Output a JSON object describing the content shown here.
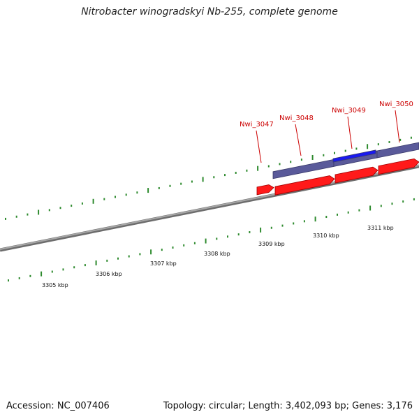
{
  "title": "Nitrobacter winogradskyi Nb-255, complete genome",
  "footer": {
    "accession": "Accession: NC_007406",
    "summary": "Topology: circular; Length: 3,402,093 bp; Genes: 3,176"
  },
  "colors": {
    "backbone": "#8a8a8a",
    "forward_cds": "#ff1a1a",
    "feature_bar": "#5a5a9a",
    "feature_highlight": "#1a1aee",
    "gc_ticks": "#2d8a2d",
    "gene_label": "#cc0000"
  },
  "genes": [
    {
      "locus": "Nwi_3047"
    },
    {
      "locus": "Nwi_3048"
    },
    {
      "locus": "Nwi_3049"
    },
    {
      "locus": "Nwi_3050"
    }
  ],
  "ruler": [
    {
      "label": "3305 kbp"
    },
    {
      "label": "3306 kbp"
    },
    {
      "label": "3307 kbp"
    },
    {
      "label": "3308 kbp"
    },
    {
      "label": "3309 kbp"
    },
    {
      "label": "3310 kbp"
    },
    {
      "label": "3311 kbp"
    }
  ]
}
